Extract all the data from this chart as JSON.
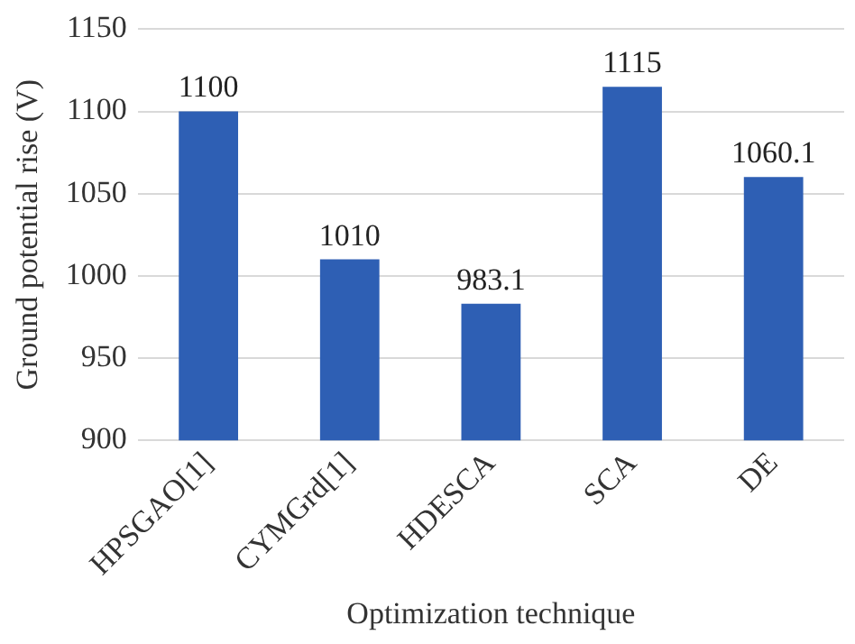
{
  "chart_data": {
    "type": "bar",
    "xlabel": "Optimization technique",
    "ylabel": "Ground potential rise (V)",
    "categories": [
      "HPSGAO[1]",
      "CYMGrd[1]",
      "HDESCA",
      "SCA",
      "DE"
    ],
    "values": [
      1100,
      1010,
      983.1,
      1115,
      1060.1
    ],
    "color": "#2e5fb4",
    "ylim": [
      900,
      1150
    ],
    "yticks": [
      900,
      950,
      1000,
      1050,
      1100,
      1150
    ],
    "grid": "y",
    "data_labels": true
  }
}
